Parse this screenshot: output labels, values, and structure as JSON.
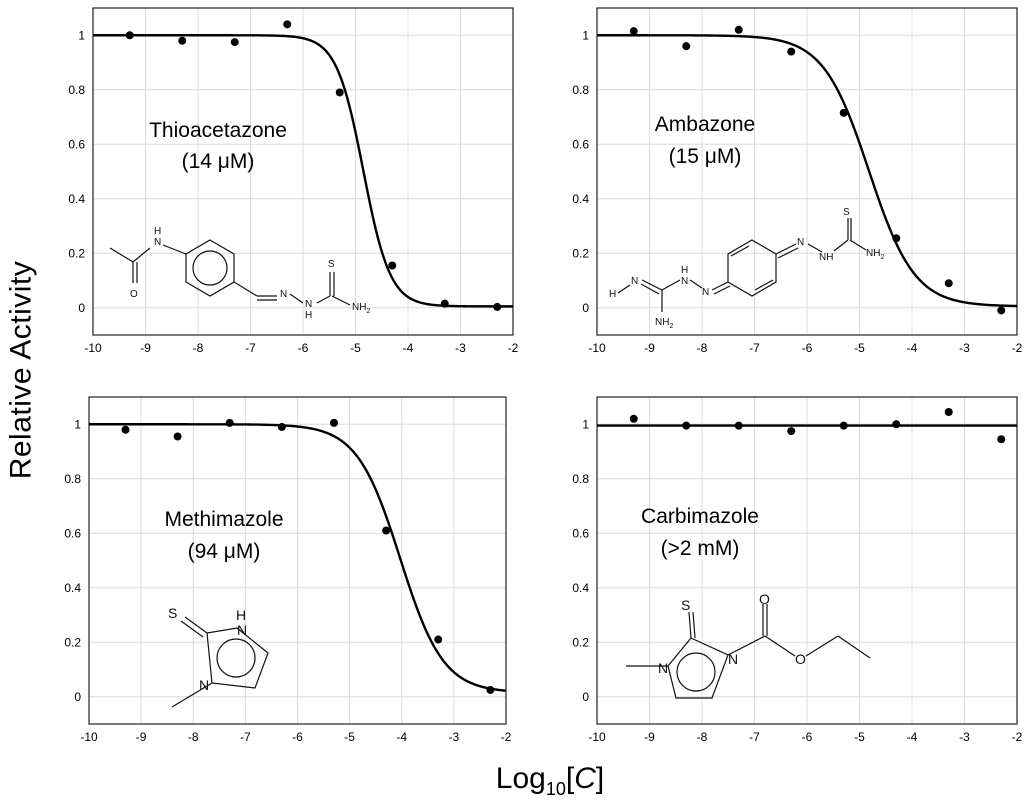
{
  "figure": {
    "ylabel": "Relative  Activity",
    "xlabel_main": "Log",
    "xlabel_sub": "10",
    "xlabel_var": "C"
  },
  "chart_data": [
    {
      "type": "scatter",
      "xlim": [
        -10,
        -2
      ],
      "ylim": [
        -0.1,
        1.1
      ],
      "xticks": [
        -10,
        -9,
        -8,
        -7,
        -6,
        -5,
        -4,
        -3,
        -2
      ],
      "yticks": [
        0,
        0.2,
        0.4,
        0.6,
        0.8,
        1
      ],
      "grid": true,
      "annotation": [
        "Thioacetazone",
        "(14 μM)"
      ],
      "x": [
        -9.3,
        -8.3,
        -7.3,
        -6.3,
        -5.3,
        -4.3,
        -3.3,
        -2.3
      ],
      "y": [
        1.0,
        0.98,
        0.975,
        1.04,
        0.79,
        0.155,
        0.015,
        0.003
      ],
      "fit": {
        "model": "logistic",
        "top": 1.0,
        "bottom": 0.005,
        "log_ic50": -4.85,
        "hill": 1.7
      }
    },
    {
      "type": "scatter",
      "xlim": [
        -10,
        -2
      ],
      "ylim": [
        -0.1,
        1.1
      ],
      "xticks": [
        -10,
        -9,
        -8,
        -7,
        -6,
        -5,
        -4,
        -3,
        -2
      ],
      "yticks": [
        0,
        0.2,
        0.4,
        0.6,
        0.8,
        1
      ],
      "grid": true,
      "annotation": [
        "Ambazone",
        "(15 μM)"
      ],
      "x": [
        -9.3,
        -8.3,
        -7.3,
        -6.3,
        -5.3,
        -4.3,
        -3.3,
        -2.3
      ],
      "y": [
        1.015,
        0.96,
        1.02,
        0.94,
        0.715,
        0.255,
        0.09,
        -0.01
      ],
      "fit": {
        "model": "logistic",
        "top": 1.0,
        "bottom": 0.005,
        "log_ic50": -4.82,
        "hill": 1.0
      }
    },
    {
      "type": "scatter",
      "xlim": [
        -10,
        -2
      ],
      "ylim": [
        -0.1,
        1.1
      ],
      "xticks": [
        -10,
        -9,
        -8,
        -7,
        -6,
        -5,
        -4,
        -3,
        -2
      ],
      "yticks": [
        0,
        0.2,
        0.4,
        0.6,
        0.8,
        1
      ],
      "grid": true,
      "annotation": [
        "Methimazole",
        "(94 μM)"
      ],
      "x": [
        -9.3,
        -8.3,
        -7.3,
        -6.3,
        -5.3,
        -4.3,
        -3.3,
        -2.3
      ],
      "y": [
        0.98,
        0.955,
        1.005,
        0.99,
        1.005,
        0.61,
        0.21,
        0.025
      ],
      "fit": {
        "model": "logistic",
        "top": 1.0,
        "bottom": 0.015,
        "log_ic50": -4.03,
        "hill": 1.05
      }
    },
    {
      "type": "scatter",
      "xlim": [
        -10,
        -2
      ],
      "ylim": [
        -0.1,
        1.1
      ],
      "xticks": [
        -10,
        -9,
        -8,
        -7,
        -6,
        -5,
        -4,
        -3,
        -2
      ],
      "yticks": [
        0,
        0.2,
        0.4,
        0.6,
        0.8,
        1
      ],
      "grid": true,
      "annotation": [
        "Carbimazole",
        "(>2 mM)"
      ],
      "x": [
        -9.3,
        -8.3,
        -7.3,
        -6.3,
        -5.3,
        -4.3,
        -3.3,
        -2.3
      ],
      "y": [
        1.02,
        0.995,
        0.995,
        0.975,
        0.995,
        1.0,
        1.045,
        0.945
      ],
      "fit": {
        "model": "constant",
        "value": 0.995
      }
    }
  ],
  "structures": {
    "thioacetazone": {
      "n1": "N",
      "h1": "H",
      "o1": "O",
      "n2": "N",
      "n3": "N",
      "h3": "H",
      "s": "S",
      "nh2": "NH",
      "sub2": "2"
    },
    "ambazone": {
      "s": "S",
      "n1": "N",
      "nh": "NH",
      "nh2": "NH",
      "sub2": "2",
      "n2": "N",
      "h1": "H",
      "n3": "N",
      "hn": "H",
      "nh2b": "NH",
      "sub2b": "2",
      "hn2": "H",
      "n4": "N"
    },
    "methimazole": {
      "s": "S",
      "h": "H",
      "n1": "N",
      "n2": "N"
    },
    "carbimazole": {
      "s": "S",
      "o1": "O",
      "o2": "O",
      "n1": "N",
      "n2": "N"
    }
  }
}
